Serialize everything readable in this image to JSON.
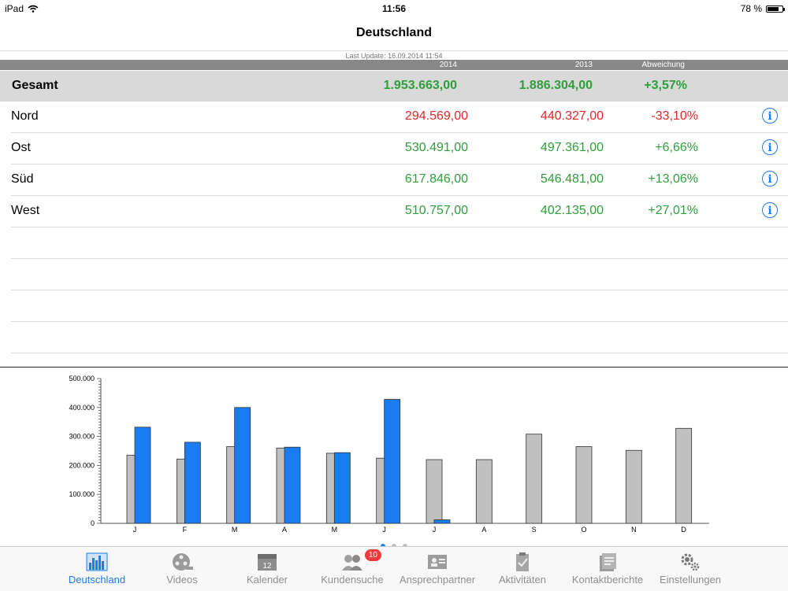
{
  "status": {
    "device": "iPad",
    "time": "11:56",
    "battery": "78 %",
    "battery_level": 0.78
  },
  "nav": {
    "title": "Deutschland"
  },
  "last_update": "Last Update: 16.09.2014 11:54",
  "columns": {
    "c2014": "2014",
    "c2013": "2013",
    "deviation": "Abweichung"
  },
  "colors": {
    "positive": "#2e9f3a",
    "negative": "#e3272a",
    "accent": "#1a7cf2",
    "bar_2013": "#c0c0c0",
    "bar_2014": "#1a7cf2"
  },
  "total": {
    "name": "Gesamt",
    "v2014": "1.953.663,00",
    "v2013": "1.886.304,00",
    "dev": "+3,57%",
    "trend": "positive"
  },
  "regions": [
    {
      "name": "Nord",
      "v2014": "294.569,00",
      "v2013": "440.327,00",
      "dev": "-33,10%",
      "trend": "negative"
    },
    {
      "name": "Ost",
      "v2014": "530.491,00",
      "v2013": "497.361,00",
      "dev": "+6,66%",
      "trend": "positive"
    },
    {
      "name": "Süd",
      "v2014": "617.846,00",
      "v2013": "546.481,00",
      "dev": "+13,06%",
      "trend": "positive"
    },
    {
      "name": "West",
      "v2014": "510.757,00",
      "v2013": "402.135,00",
      "dev": "+27,01%",
      "trend": "positive"
    }
  ],
  "chart_data": {
    "type": "bar",
    "categories": [
      "J",
      "F",
      "M",
      "A",
      "M",
      "J",
      "J",
      "A",
      "S",
      "O",
      "N",
      "D"
    ],
    "series": [
      {
        "values": [
          235000,
          222000,
          265000,
          260000,
          242000,
          225000,
          220000,
          220000,
          308000,
          265000,
          252000,
          328000
        ]
      },
      {
        "values": [
          332000,
          280000,
          400000,
          263000,
          244000,
          428000,
          12000,
          0,
          null,
          null,
          null,
          null
        ]
      }
    ],
    "yticks": [
      "0",
      "100.000",
      "200.000",
      "300.000",
      "400.000",
      "500.000"
    ],
    "ylim": [
      0,
      500000
    ]
  },
  "pager": {
    "pages": 3,
    "active": 0
  },
  "tabs": [
    {
      "label": "Deutschland",
      "icon": "bar-chart-icon",
      "active": true
    },
    {
      "label": "Videos",
      "icon": "film-reel-icon"
    },
    {
      "label": "Kalender",
      "icon": "calendar-icon"
    },
    {
      "label": "Kundensuche",
      "icon": "people-icon",
      "badge": "10"
    },
    {
      "label": "Ansprechpartner",
      "icon": "contact-card-icon"
    },
    {
      "label": "Aktivitäten",
      "icon": "clipboard-icon"
    },
    {
      "label": "Kontaktberichte",
      "icon": "reports-icon"
    },
    {
      "label": "Einstellungen",
      "icon": "gear-icon"
    }
  ]
}
